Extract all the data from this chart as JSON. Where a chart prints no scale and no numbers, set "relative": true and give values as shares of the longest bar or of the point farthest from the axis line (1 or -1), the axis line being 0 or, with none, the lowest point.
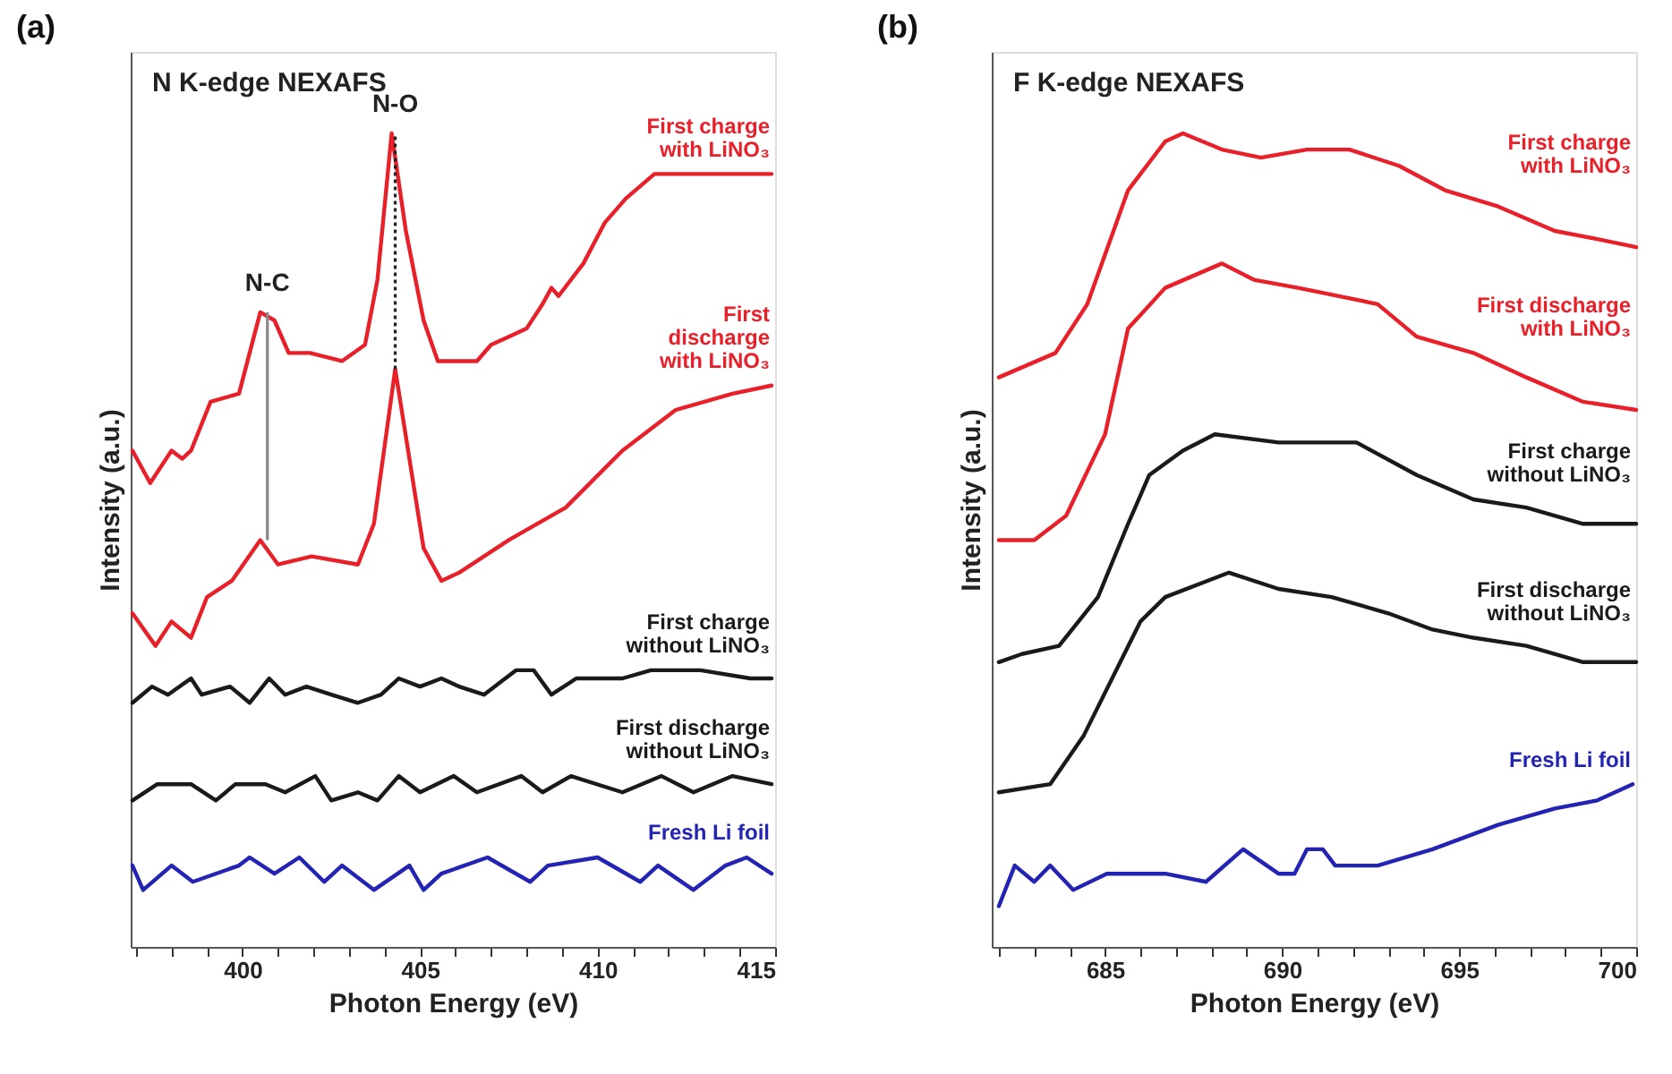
{
  "chart_data": [
    {
      "type": "line",
      "title": "N K-edge NEXAFS",
      "annotations": [
        "(a)"
      ],
      "xlabel": "Photon Energy (eV)",
      "ylabel": "Intensity (a.u.)",
      "relative": true,
      "tick_labels": "x",
      "line_style": "solid",
      "xlim": [
        396.85,
        415
      ],
      "xticks": [
        {
          "value": 397,
          "label": null
        },
        {
          "value": 398,
          "label": null
        },
        {
          "value": 399,
          "label": null
        },
        400,
        {
          "value": 401,
          "label": null
        },
        {
          "value": 402,
          "label": null
        },
        {
          "value": 403,
          "label": null
        },
        {
          "value": 404,
          "label": null
        },
        405,
        {
          "value": 406,
          "label": null
        },
        {
          "value": 407,
          "label": null
        },
        {
          "value": 408,
          "label": null
        },
        {
          "value": 409,
          "label": null
        },
        410,
        {
          "value": 411,
          "label": null
        },
        {
          "value": 412,
          "label": null
        },
        {
          "value": 413,
          "label": null
        },
        {
          "value": 414,
          "label": null
        },
        415
      ],
      "ref_lines": [
        {
          "axis": "x",
          "value": 400.7,
          "label": "N-C",
          "color": "#888888",
          "line_style": "solid"
        },
        {
          "axis": "x",
          "value": 404.3,
          "label": "N-O",
          "color": "#222222",
          "line_style": "dotted"
        }
      ],
      "series": [
        {
          "name": "First charge\nwith LiNO₃",
          "color": "#e8202a",
          "x": [
            396.9,
            397.4,
            398.0,
            398.3,
            398.55,
            399.1,
            399.9,
            400.5,
            400.9,
            401.3,
            401.9,
            402.8,
            403.45,
            403.8,
            404.2,
            404.6,
            405.1,
            405.5,
            405.9,
            406.6,
            407.0,
            407.5,
            408.0,
            408.45,
            408.7,
            408.9,
            409.6,
            410.2,
            410.8,
            411.6,
            412.9,
            414.1,
            414.6,
            414.9
          ],
          "values": [
            0.61,
            0.57,
            0.61,
            0.6,
            0.61,
            0.67,
            0.68,
            0.78,
            0.77,
            0.73,
            0.73,
            0.72,
            0.74,
            0.82,
            1.0,
            0.88,
            0.77,
            0.72,
            0.72,
            0.72,
            0.74,
            0.75,
            0.76,
            0.79,
            0.81,
            0.8,
            0.84,
            0.89,
            0.92,
            0.95,
            0.95,
            0.95,
            0.95,
            0.95
          ]
        },
        {
          "name": "First\ndischarge\nwith LiNO₃",
          "color": "#e8202a",
          "x": [
            396.9,
            397.55,
            398.0,
            398.55,
            399.0,
            399.7,
            400.5,
            401.0,
            401.95,
            403.25,
            403.7,
            404.3,
            405.1,
            405.6,
            406.1,
            407.5,
            409.1,
            410.7,
            412.2,
            413.8,
            414.9
          ],
          "values": [
            0.41,
            0.37,
            0.4,
            0.38,
            0.43,
            0.45,
            0.5,
            0.47,
            0.48,
            0.47,
            0.52,
            0.71,
            0.49,
            0.45,
            0.46,
            0.5,
            0.54,
            0.61,
            0.66,
            0.68,
            0.69
          ]
        },
        {
          "name": "First charge\nwithout LiNO₃",
          "color": "#1a1a1a",
          "x": [
            396.9,
            397.45,
            397.9,
            398.55,
            398.85,
            399.65,
            400.2,
            400.75,
            401.2,
            401.8,
            402.5,
            403.25,
            403.9,
            404.4,
            405.0,
            405.6,
            406.1,
            406.8,
            407.7,
            408.2,
            408.7,
            409.4,
            410.7,
            411.5,
            412.9,
            414.3,
            414.9
          ],
          "values": [
            0.3,
            0.32,
            0.31,
            0.33,
            0.31,
            0.32,
            0.3,
            0.33,
            0.31,
            0.32,
            0.31,
            0.3,
            0.31,
            0.33,
            0.32,
            0.33,
            0.32,
            0.31,
            0.34,
            0.34,
            0.31,
            0.33,
            0.33,
            0.34,
            0.34,
            0.33,
            0.33
          ]
        },
        {
          "name": "First discharge\nwithout LiNO₃",
          "color": "#1a1a1a",
          "x": [
            396.9,
            397.6,
            398.55,
            399.25,
            399.8,
            400.65,
            401.2,
            402.05,
            402.5,
            403.25,
            403.8,
            404.4,
            405.0,
            405.95,
            406.6,
            407.85,
            408.45,
            409.25,
            410.7,
            411.8,
            412.7,
            413.8,
            414.9
          ],
          "values": [
            0.18,
            0.2,
            0.2,
            0.18,
            0.2,
            0.2,
            0.19,
            0.21,
            0.18,
            0.19,
            0.18,
            0.21,
            0.19,
            0.21,
            0.19,
            0.21,
            0.19,
            0.21,
            0.19,
            0.21,
            0.19,
            0.21,
            0.2
          ]
        },
        {
          "name": "Fresh Li foil",
          "color": "#2323b4",
          "x": [
            396.9,
            397.2,
            398.0,
            398.6,
            399.9,
            400.2,
            400.9,
            401.6,
            402.3,
            402.8,
            403.7,
            404.7,
            405.1,
            405.6,
            406.9,
            408.1,
            408.6,
            410.0,
            411.2,
            411.7,
            412.7,
            413.6,
            414.2,
            414.9
          ],
          "values": [
            0.1,
            0.07,
            0.1,
            0.08,
            0.1,
            0.11,
            0.09,
            0.11,
            0.08,
            0.1,
            0.07,
            0.1,
            0.07,
            0.09,
            0.11,
            0.08,
            0.1,
            0.11,
            0.08,
            0.1,
            0.07,
            0.1,
            0.11,
            0.09
          ]
        }
      ]
    },
    {
      "type": "line",
      "title": "F K-edge NEXAFS",
      "annotations": [
        "(b)"
      ],
      "xlabel": "Photon Energy (eV)",
      "ylabel": "Intensity (a.u.)",
      "relative": true,
      "tick_labels": "x",
      "line_style": "solid",
      "xlim": [
        681.8,
        700
      ],
      "xticks": [
        {
          "value": 682,
          "label": null
        },
        {
          "value": 683,
          "label": null
        },
        {
          "value": 684,
          "label": null
        },
        685,
        {
          "value": 686,
          "label": null
        },
        {
          "value": 687,
          "label": null
        },
        {
          "value": 688,
          "label": null
        },
        {
          "value": 689,
          "label": null
        },
        690,
        {
          "value": 691,
          "label": null
        },
        {
          "value": 692,
          "label": null
        },
        {
          "value": 693,
          "label": null
        },
        {
          "value": 694,
          "label": null
        },
        695,
        {
          "value": 696,
          "label": null
        },
        {
          "value": 697,
          "label": null
        },
        {
          "value": 698,
          "label": null
        },
        {
          "value": 699,
          "label": null
        },
        700
      ],
      "series": [
        {
          "name": "First charge\nwith LiNO₃",
          "color": "#e8202a",
          "x": [
            682.0,
            683.6,
            684.5,
            685.65,
            686.7,
            687.2,
            688.3,
            689.4,
            690.7,
            691.9,
            693.3,
            694.6,
            696.1,
            697.7,
            698.9,
            700.0
          ],
          "values": [
            0.7,
            0.73,
            0.79,
            0.93,
            0.99,
            1.0,
            0.98,
            0.97,
            0.98,
            0.98,
            0.96,
            0.93,
            0.91,
            0.88,
            0.87,
            0.86
          ]
        },
        {
          "name": "First discharge\nwith LiNO₃",
          "color": "#e8202a",
          "x": [
            682.0,
            683.0,
            683.9,
            685.0,
            685.65,
            686.7,
            688.3,
            689.2,
            690.45,
            692.7,
            693.8,
            695.4,
            696.9,
            698.5,
            700.0
          ],
          "values": [
            0.5,
            0.5,
            0.53,
            0.63,
            0.76,
            0.81,
            0.84,
            0.82,
            0.81,
            0.79,
            0.75,
            0.73,
            0.7,
            0.67,
            0.66
          ]
        },
        {
          "name": "First charge\nwithout LiNO₃",
          "color": "#1a1a1a",
          "x": [
            682.0,
            682.65,
            683.7,
            684.8,
            685.65,
            686.25,
            687.2,
            688.1,
            689.9,
            692.1,
            693.8,
            695.4,
            696.9,
            698.5,
            700.0
          ],
          "values": [
            0.35,
            0.36,
            0.37,
            0.43,
            0.52,
            0.58,
            0.61,
            0.63,
            0.62,
            0.62,
            0.58,
            0.55,
            0.54,
            0.52,
            0.52
          ]
        },
        {
          "name": "First discharge\nwithout LiNO₃",
          "color": "#1a1a1a",
          "x": [
            682.0,
            683.45,
            684.4,
            685.2,
            686.0,
            686.7,
            688.5,
            689.9,
            691.4,
            693.0,
            694.25,
            695.4,
            696.9,
            698.5,
            700.0
          ],
          "values": [
            0.19,
            0.2,
            0.26,
            0.33,
            0.4,
            0.43,
            0.46,
            0.44,
            0.43,
            0.41,
            0.39,
            0.38,
            0.37,
            0.35,
            0.35
          ]
        },
        {
          "name": "Fresh Li foil",
          "color": "#2323b4",
          "x": [
            682.0,
            682.45,
            683.0,
            683.45,
            684.1,
            685.05,
            686.7,
            687.85,
            688.9,
            689.9,
            690.35,
            690.7,
            691.15,
            691.5,
            692.7,
            694.25,
            696.1,
            697.7,
            698.9,
            699.9
          ],
          "values": [
            0.05,
            0.1,
            0.08,
            0.1,
            0.07,
            0.09,
            0.09,
            0.08,
            0.12,
            0.09,
            0.09,
            0.12,
            0.12,
            0.1,
            0.1,
            0.12,
            0.15,
            0.17,
            0.18,
            0.2
          ]
        }
      ]
    }
  ]
}
